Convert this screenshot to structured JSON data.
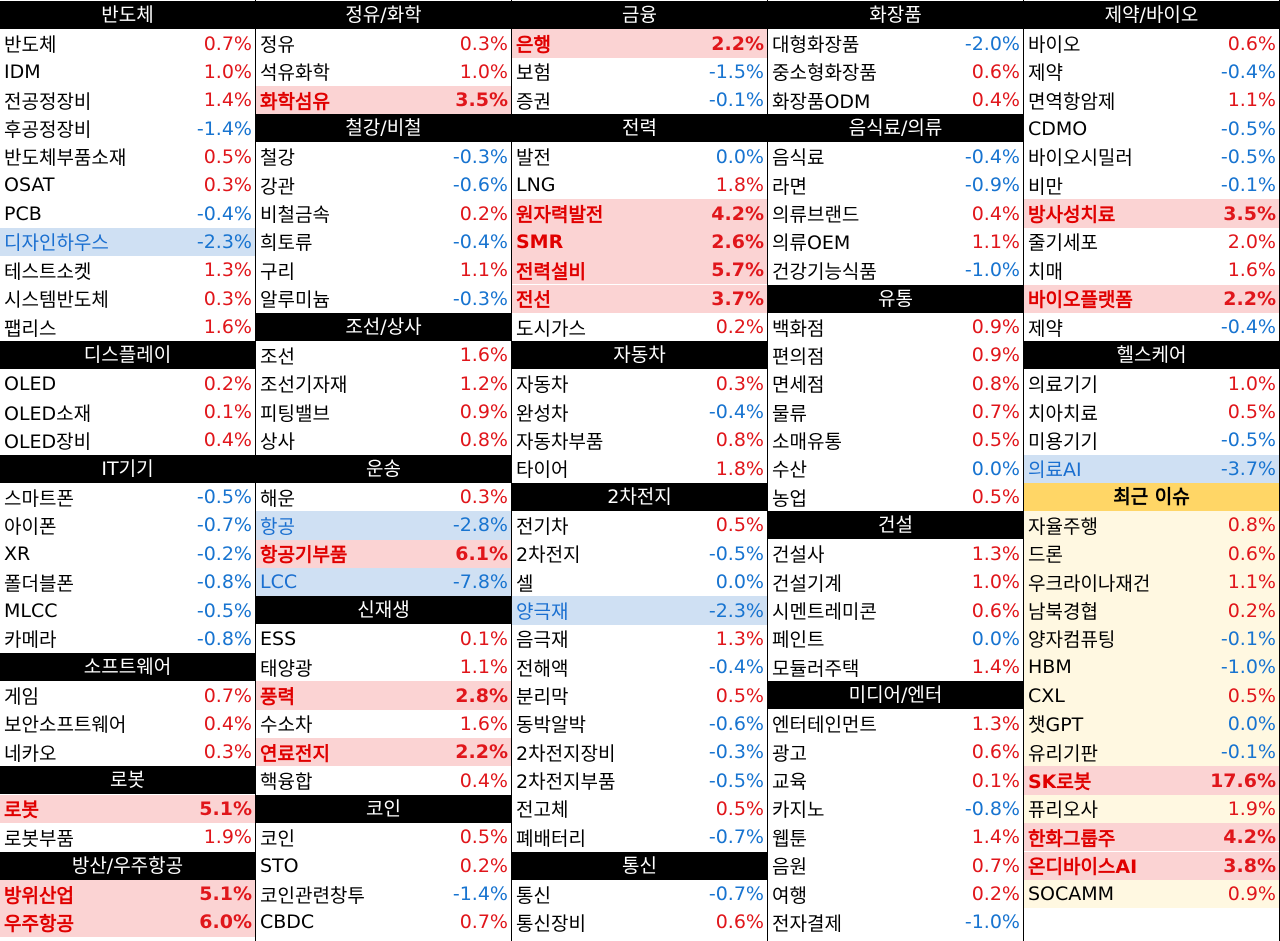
{
  "columns": [
    {
      "sections": [
        {
          "title": "반도체",
          "items": [
            {
              "name": "반도체",
              "value": "0.7%"
            },
            {
              "name": "IDM",
              "value": "1.0%"
            },
            {
              "name": "전공정장비",
              "value": "1.4%"
            },
            {
              "name": "후공정장비",
              "value": "-1.4%"
            },
            {
              "name": "반도체부품소재",
              "value": "0.5%"
            },
            {
              "name": "OSAT",
              "value": "0.3%"
            },
            {
              "name": "PCB",
              "value": "-0.4%"
            },
            {
              "name": "디자인하우스",
              "value": "-2.3%",
              "highlight": "down"
            },
            {
              "name": "테스트소켓",
              "value": "1.3%"
            },
            {
              "name": "시스템반도체",
              "value": "0.3%"
            },
            {
              "name": "팹리스",
              "value": "1.6%"
            }
          ]
        },
        {
          "title": "디스플레이",
          "items": [
            {
              "name": "OLED",
              "value": "0.2%"
            },
            {
              "name": "OLED소재",
              "value": "0.1%"
            },
            {
              "name": "OLED장비",
              "value": "0.4%"
            }
          ]
        },
        {
          "title": "IT기기",
          "items": [
            {
              "name": "스마트폰",
              "value": "-0.5%"
            },
            {
              "name": "아이폰",
              "value": "-0.7%"
            },
            {
              "name": "XR",
              "value": "-0.2%"
            },
            {
              "name": "폴더블폰",
              "value": "-0.8%"
            },
            {
              "name": "MLCC",
              "value": "-0.5%"
            },
            {
              "name": "카메라",
              "value": "-0.8%"
            }
          ]
        },
        {
          "title": "소프트웨어",
          "items": [
            {
              "name": "게임",
              "value": "0.7%"
            },
            {
              "name": "보안소프트웨어",
              "value": "0.4%"
            },
            {
              "name": "네카오",
              "value": "0.3%"
            }
          ]
        },
        {
          "title": "로봇",
          "items": [
            {
              "name": "로봇",
              "value": "5.1%",
              "highlight": "up"
            },
            {
              "name": "로봇부품",
              "value": "1.9%"
            }
          ]
        },
        {
          "title": "방산/우주항공",
          "items": [
            {
              "name": "방위산업",
              "value": "5.1%",
              "highlight": "up"
            },
            {
              "name": "우주항공",
              "value": "6.0%",
              "highlight": "up"
            }
          ]
        }
      ]
    },
    {
      "sections": [
        {
          "title": "정유/화학",
          "items": [
            {
              "name": "정유",
              "value": "0.3%"
            },
            {
              "name": "석유화학",
              "value": "1.0%"
            },
            {
              "name": "화학섬유",
              "value": "3.5%",
              "highlight": "up"
            }
          ]
        },
        {
          "title": "철강/비철",
          "items": [
            {
              "name": "철강",
              "value": "-0.3%"
            },
            {
              "name": "강관",
              "value": "-0.6%"
            },
            {
              "name": "비철금속",
              "value": "0.2%"
            },
            {
              "name": "희토류",
              "value": "-0.4%"
            },
            {
              "name": "구리",
              "value": "1.1%"
            },
            {
              "name": "알루미늄",
              "value": "-0.3%"
            }
          ]
        },
        {
          "title": "조선/상사",
          "items": [
            {
              "name": "조선",
              "value": "1.6%"
            },
            {
              "name": "조선기자재",
              "value": "1.2%"
            },
            {
              "name": "피팅밸브",
              "value": "0.9%"
            },
            {
              "name": "상사",
              "value": "0.8%"
            }
          ]
        },
        {
          "title": "운송",
          "items": [
            {
              "name": "해운",
              "value": "0.3%"
            },
            {
              "name": "항공",
              "value": "-2.8%",
              "highlight": "down"
            },
            {
              "name": "항공기부품",
              "value": "6.1%",
              "highlight": "up"
            },
            {
              "name": "LCC",
              "value": "-7.8%",
              "highlight": "down"
            }
          ]
        },
        {
          "title": "신재생",
          "items": [
            {
              "name": "ESS",
              "value": "0.1%"
            },
            {
              "name": "태양광",
              "value": "1.1%"
            },
            {
              "name": "풍력",
              "value": "2.8%",
              "highlight": "up"
            },
            {
              "name": "수소차",
              "value": "1.6%"
            },
            {
              "name": "연료전지",
              "value": "2.2%",
              "highlight": "up"
            },
            {
              "name": "핵융합",
              "value": "0.4%"
            }
          ]
        },
        {
          "title": "코인",
          "items": [
            {
              "name": "코인",
              "value": "0.5%"
            },
            {
              "name": "STO",
              "value": "0.2%"
            },
            {
              "name": "코인관련창투",
              "value": "-1.4%"
            },
            {
              "name": "CBDC",
              "value": "0.7%"
            }
          ]
        }
      ]
    },
    {
      "sections": [
        {
          "title": "금융",
          "items": [
            {
              "name": "은행",
              "value": "2.2%",
              "highlight": "up"
            },
            {
              "name": "보험",
              "value": "-1.5%"
            },
            {
              "name": "증권",
              "value": "-0.1%"
            }
          ]
        },
        {
          "title": "전력",
          "items": [
            {
              "name": "발전",
              "value": "0.0%"
            },
            {
              "name": "LNG",
              "value": "1.8%"
            },
            {
              "name": "원자력발전",
              "value": "4.2%",
              "highlight": "up"
            },
            {
              "name": "SMR",
              "value": "2.6%",
              "highlight": "up"
            },
            {
              "name": "전력설비",
              "value": "5.7%",
              "highlight": "up"
            },
            {
              "name": "전선",
              "value": "3.7%",
              "highlight": "up"
            },
            {
              "name": "도시가스",
              "value": "0.2%"
            }
          ]
        },
        {
          "title": "자동차",
          "items": [
            {
              "name": "자동차",
              "value": "0.3%"
            },
            {
              "name": "완성차",
              "value": "-0.4%"
            },
            {
              "name": "자동차부품",
              "value": "0.8%"
            },
            {
              "name": "타이어",
              "value": "1.8%"
            }
          ]
        },
        {
          "title": "2차전지",
          "items": [
            {
              "name": "전기차",
              "value": "0.5%"
            },
            {
              "name": "2차전지",
              "value": "-0.5%"
            },
            {
              "name": "셀",
              "value": "0.0%"
            },
            {
              "name": "양극재",
              "value": "-2.3%",
              "highlight": "down"
            },
            {
              "name": "음극재",
              "value": "1.3%"
            },
            {
              "name": "전해액",
              "value": "-0.4%"
            },
            {
              "name": "분리막",
              "value": "0.5%"
            },
            {
              "name": "동박알박",
              "value": "-0.6%"
            },
            {
              "name": "2차전지장비",
              "value": "-0.3%"
            },
            {
              "name": "2차전지부품",
              "value": "-0.5%"
            },
            {
              "name": "전고체",
              "value": "0.5%"
            },
            {
              "name": "폐배터리",
              "value": "-0.7%"
            }
          ]
        },
        {
          "title": "통신",
          "items": [
            {
              "name": "통신",
              "value": "-0.7%"
            },
            {
              "name": "통신장비",
              "value": "0.6%"
            }
          ]
        }
      ]
    },
    {
      "sections": [
        {
          "title": "화장품",
          "items": [
            {
              "name": "대형화장품",
              "value": "-2.0%"
            },
            {
              "name": "중소형화장품",
              "value": "0.6%"
            },
            {
              "name": "화장품ODM",
              "value": "0.4%"
            }
          ]
        },
        {
          "title": "음식료/의류",
          "items": [
            {
              "name": "음식료",
              "value": "-0.4%"
            },
            {
              "name": "라면",
              "value": "-0.9%"
            },
            {
              "name": "의류브랜드",
              "value": "0.4%"
            },
            {
              "name": "의류OEM",
              "value": "1.1%"
            },
            {
              "name": "건강기능식품",
              "value": "-1.0%"
            }
          ]
        },
        {
          "title": "유통",
          "items": [
            {
              "name": "백화점",
              "value": "0.9%"
            },
            {
              "name": "편의점",
              "value": "0.9%"
            },
            {
              "name": "면세점",
              "value": "0.8%"
            },
            {
              "name": "물류",
              "value": "0.7%"
            },
            {
              "name": "소매유통",
              "value": "0.5%"
            },
            {
              "name": "수산",
              "value": "0.0%"
            },
            {
              "name": "농업",
              "value": "0.5%"
            }
          ]
        },
        {
          "title": "건설",
          "items": [
            {
              "name": "건설사",
              "value": "1.3%"
            },
            {
              "name": "건설기계",
              "value": "1.0%"
            },
            {
              "name": "시멘트레미콘",
              "value": "0.6%"
            },
            {
              "name": "페인트",
              "value": "0.0%"
            },
            {
              "name": "모듈러주택",
              "value": "1.4%"
            }
          ]
        },
        {
          "title": "미디어/엔터",
          "items": [
            {
              "name": "엔터테인먼트",
              "value": "1.3%"
            },
            {
              "name": "광고",
              "value": "0.6%"
            },
            {
              "name": "교육",
              "value": "0.1%"
            },
            {
              "name": "카지노",
              "value": "-0.8%"
            },
            {
              "name": "웹툰",
              "value": "1.4%"
            },
            {
              "name": "음원",
              "value": "0.7%"
            },
            {
              "name": "여행",
              "value": "0.2%"
            },
            {
              "name": "전자결제",
              "value": "-1.0%"
            }
          ]
        }
      ]
    },
    {
      "sections": [
        {
          "title": "제약/바이오",
          "items": [
            {
              "name": "바이오",
              "value": "0.6%"
            },
            {
              "name": "제약",
              "value": "-0.4%"
            },
            {
              "name": "면역항암제",
              "value": "1.1%"
            },
            {
              "name": "CDMO",
              "value": "-0.5%"
            },
            {
              "name": "바이오시밀러",
              "value": "-0.5%"
            },
            {
              "name": "비만",
              "value": "-0.1%"
            },
            {
              "name": "방사성치료",
              "value": "3.5%",
              "highlight": "up"
            },
            {
              "name": "줄기세포",
              "value": "2.0%"
            },
            {
              "name": "치매",
              "value": "1.6%"
            },
            {
              "name": "바이오플랫폼",
              "value": "2.2%",
              "highlight": "up"
            },
            {
              "name": "제약",
              "value": "-0.4%"
            }
          ]
        },
        {
          "title": "헬스케어",
          "items": [
            {
              "name": "의료기기",
              "value": "1.0%"
            },
            {
              "name": "치아치료",
              "value": "0.5%"
            },
            {
              "name": "미용기기",
              "value": "-0.5%"
            },
            {
              "name": "의료AI",
              "value": "-3.7%",
              "highlight": "down"
            }
          ]
        },
        {
          "title": "최근 이슈",
          "style": "issue",
          "items": [
            {
              "name": "자율주행",
              "value": "0.8%"
            },
            {
              "name": "드론",
              "value": "0.6%"
            },
            {
              "name": "우크라이나재건",
              "value": "1.1%"
            },
            {
              "name": "남북경협",
              "value": "0.2%"
            },
            {
              "name": "양자컴퓨팅",
              "value": "-0.1%"
            },
            {
              "name": "HBM",
              "value": "-1.0%"
            },
            {
              "name": "CXL",
              "value": "0.5%"
            },
            {
              "name": "챗GPT",
              "value": "0.0%"
            },
            {
              "name": "유리기판",
              "value": "-0.1%"
            },
            {
              "name": "SK로봇",
              "value": "17.6%",
              "highlight": "up"
            },
            {
              "name": "퓨리오사",
              "value": "1.9%"
            },
            {
              "name": "한화그룹주",
              "value": "4.2%",
              "highlight": "up"
            },
            {
              "name": "온디바이스AI",
              "value": "3.8%",
              "highlight": "up"
            },
            {
              "name": "SOCAMM",
              "value": "0.9%"
            }
          ]
        }
      ]
    }
  ],
  "colors": {
    "header_bg": "#000000",
    "header_text": "#ffffff",
    "up": "#e0161b",
    "down": "#1874d0",
    "up_highlight_bg": "#fbd3d3",
    "down_highlight_bg": "#cfe0f3",
    "issue_header_bg": "#ffd666",
    "issue_row_bg": "#fff8e1"
  }
}
